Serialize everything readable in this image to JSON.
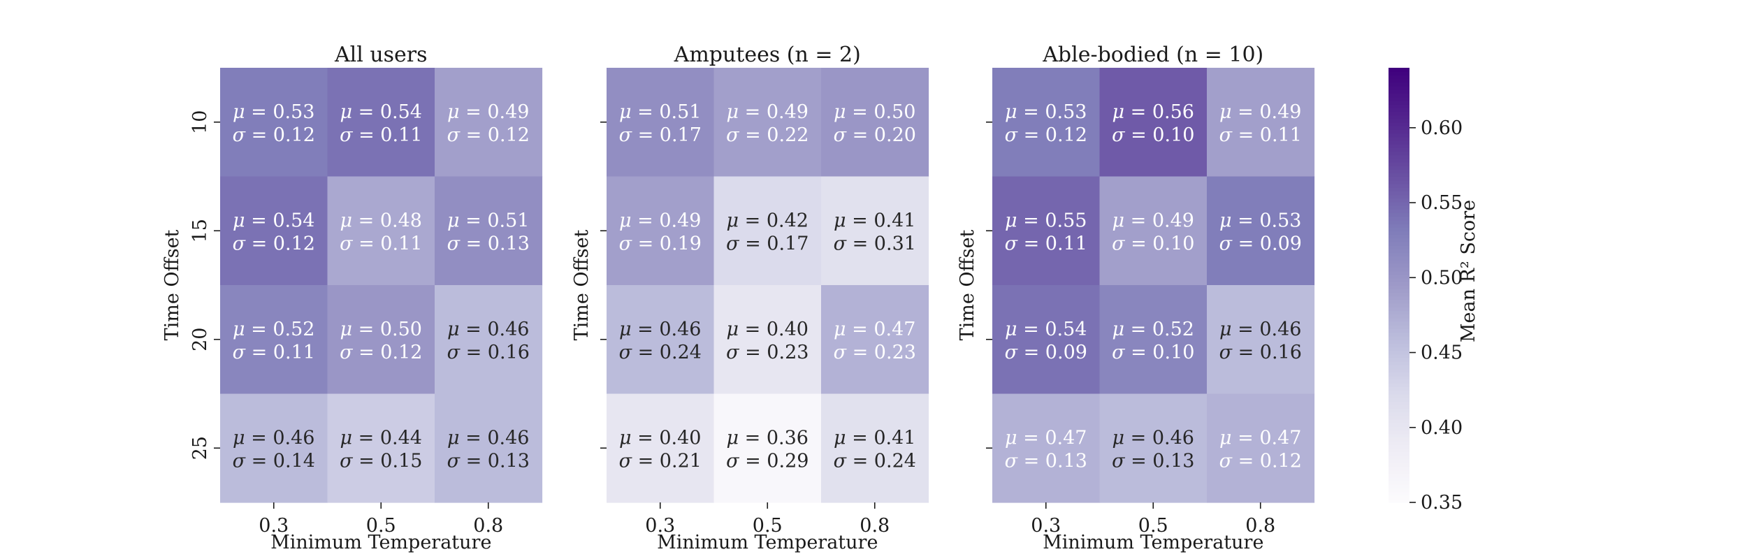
{
  "chart_data": {
    "type": "heatmap",
    "x_categories": [
      "0.3",
      "0.5",
      "0.8"
    ],
    "y_categories": [
      "10",
      "15",
      "20",
      "25"
    ],
    "xlabel": "Minimum Temperature",
    "ylabel": "Time Offset",
    "panels": [
      {
        "title": "All users",
        "mu": [
          [
            0.53,
            0.54,
            0.49
          ],
          [
            0.54,
            0.48,
            0.51
          ],
          [
            0.52,
            0.5,
            0.46
          ],
          [
            0.46,
            0.44,
            0.46
          ]
        ],
        "sigma": [
          [
            0.12,
            0.11,
            0.12
          ],
          [
            0.12,
            0.11,
            0.13
          ],
          [
            0.11,
            0.12,
            0.16
          ],
          [
            0.14,
            0.15,
            0.13
          ]
        ]
      },
      {
        "title": "Amputees (n = 2)",
        "mu": [
          [
            0.51,
            0.49,
            0.5
          ],
          [
            0.49,
            0.42,
            0.41
          ],
          [
            0.46,
            0.4,
            0.47
          ],
          [
            0.4,
            0.36,
            0.41
          ]
        ],
        "sigma": [
          [
            0.17,
            0.22,
            0.2
          ],
          [
            0.19,
            0.17,
            0.31
          ],
          [
            0.24,
            0.23,
            0.23
          ],
          [
            0.21,
            0.29,
            0.24
          ]
        ]
      },
      {
        "title": "Able-bodied (n = 10)",
        "mu": [
          [
            0.53,
            0.56,
            0.49
          ],
          [
            0.55,
            0.49,
            0.53
          ],
          [
            0.54,
            0.52,
            0.46
          ],
          [
            0.47,
            0.46,
            0.47
          ]
        ],
        "sigma": [
          [
            0.12,
            0.1,
            0.11
          ],
          [
            0.11,
            0.1,
            0.09
          ],
          [
            0.09,
            0.1,
            0.16
          ],
          [
            0.13,
            0.13,
            0.12
          ]
        ]
      }
    ],
    "colorbar": {
      "label": "Mean R² Score",
      "vmin": 0.35,
      "vmax": 0.64,
      "ticks": [
        "0.35",
        "0.40",
        "0.45",
        "0.50",
        "0.55",
        "0.60"
      ],
      "colormap": "Purples"
    }
  }
}
